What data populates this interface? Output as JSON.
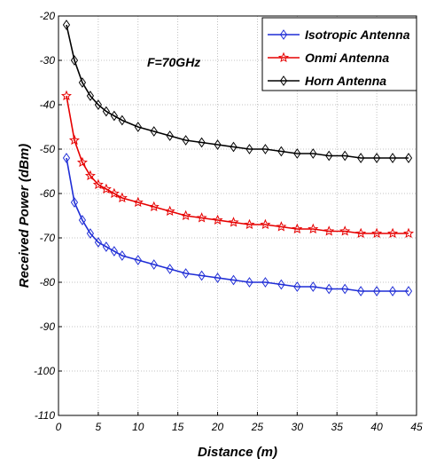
{
  "chart_data": {
    "type": "line",
    "title": "",
    "xlabel": "Distance (m)",
    "ylabel": "Received Power (dBm)",
    "xlim": [
      0,
      45
    ],
    "ylim": [
      -110,
      -20
    ],
    "xticks": [
      "0",
      "5",
      "10",
      "15",
      "20",
      "25",
      "30",
      "35",
      "40",
      "45"
    ],
    "yticks": [
      "-20",
      "-30",
      "-40",
      "-50",
      "-60",
      "-70",
      "-80",
      "-90",
      "-100",
      "-110"
    ],
    "grid": true,
    "legend_position": "top-right",
    "annotation": "F=70GHz",
    "series": [
      {
        "name": "Isotropic Antenna",
        "color": "#1f2dd6",
        "marker": "diamond",
        "x": [
          1,
          2,
          3,
          4,
          5,
          6,
          7,
          8,
          10,
          12,
          14,
          16,
          18,
          20,
          22,
          24,
          26,
          28,
          30,
          32,
          34,
          36,
          38,
          40,
          42,
          44
        ],
        "y": [
          -52,
          -62,
          -66,
          -69,
          -71,
          -72,
          -73,
          -74,
          -75,
          -76,
          -77,
          -78,
          -78.5,
          -79,
          -79.5,
          -80,
          -80,
          -80.5,
          -81,
          -81,
          -81.5,
          -81.5,
          -82,
          -82,
          -82,
          -82
        ]
      },
      {
        "name": "Onmi Antenna",
        "color": "#e60000",
        "marker": "pentagram",
        "x": [
          1,
          2,
          3,
          4,
          5,
          6,
          7,
          8,
          10,
          12,
          14,
          16,
          18,
          20,
          22,
          24,
          26,
          28,
          30,
          32,
          34,
          36,
          38,
          40,
          42,
          44
        ],
        "y": [
          -38,
          -48,
          -53,
          -56,
          -58,
          -59,
          -60,
          -61,
          -62,
          -63,
          -64,
          -65,
          -65.5,
          -66,
          -66.5,
          -67,
          -67,
          -67.5,
          -68,
          -68,
          -68.5,
          -68.5,
          -69,
          -69,
          -69,
          -69
        ]
      },
      {
        "name": "Horn Antenna",
        "color": "#000000",
        "marker": "diamond",
        "x": [
          1,
          2,
          3,
          4,
          5,
          6,
          7,
          8,
          10,
          12,
          14,
          16,
          18,
          20,
          22,
          24,
          26,
          28,
          30,
          32,
          34,
          36,
          38,
          40,
          42,
          44
        ],
        "y": [
          -22,
          -30,
          -35,
          -38,
          -40,
          -41.5,
          -42.5,
          -43.5,
          -45,
          -46,
          -47,
          -48,
          -48.5,
          -49,
          -49.5,
          -50,
          -50,
          -50.5,
          -51,
          -51,
          -51.5,
          -51.5,
          -52,
          -52,
          -52,
          -52
        ]
      }
    ]
  }
}
